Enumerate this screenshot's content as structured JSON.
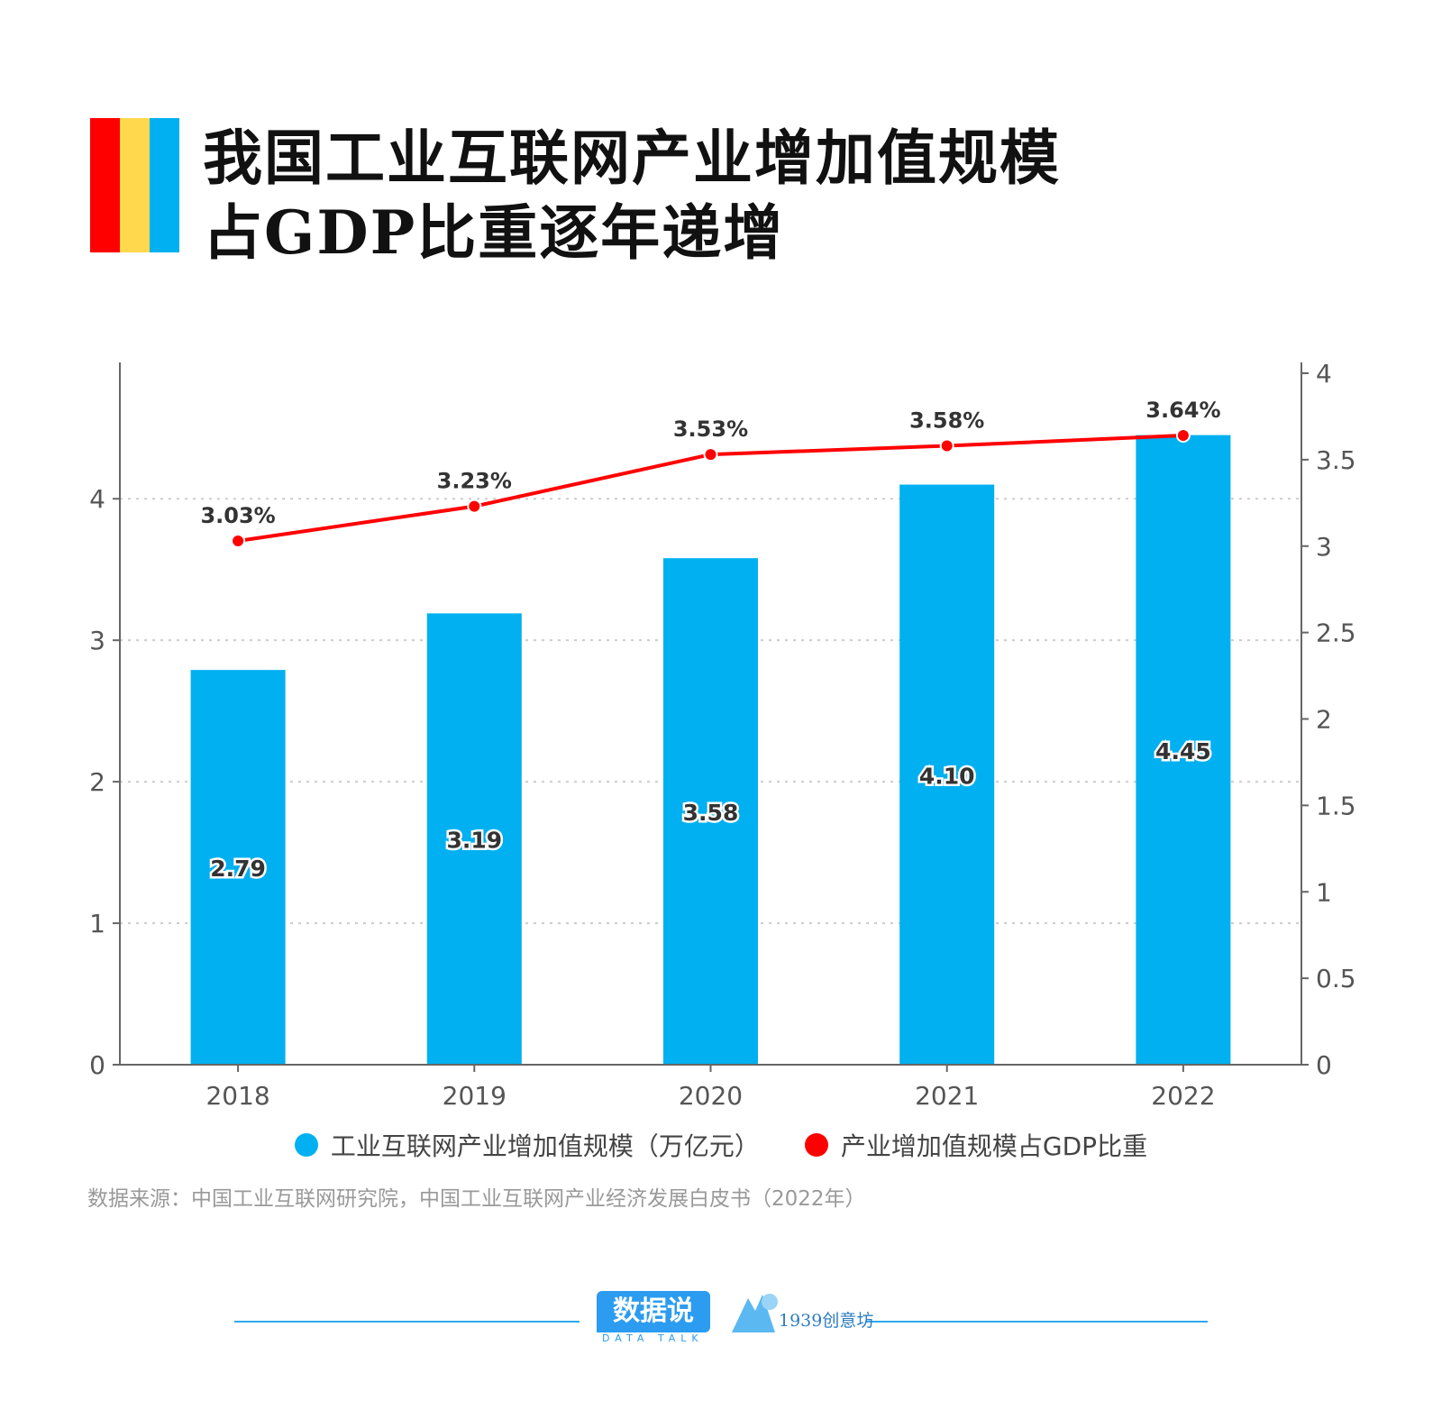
{
  "title": {
    "line1": "我国工业互联网产业增加值规模",
    "line2": "占GDP比重逐年递增"
  },
  "colors": {
    "red": "#FF0000",
    "yellow": "#FFD84D",
    "blue": "#00B0F0",
    "line": "#FF0000",
    "footer": "#2FA9F0"
  },
  "chart_data": {
    "type": "bar+line",
    "categories": [
      "2018",
      "2019",
      "2020",
      "2021",
      "2022"
    ],
    "series": [
      {
        "name": "工业互联网产业增加值规模（万亿元）",
        "type": "bar",
        "axis": "left",
        "color": "#00B0F0",
        "values": [
          2.79,
          3.19,
          3.58,
          4.1,
          4.45
        ],
        "labels": [
          "2.79",
          "3.19",
          "3.58",
          "4.10",
          "4.45"
        ]
      },
      {
        "name": "产业增加值规模占GDP比重",
        "type": "line",
        "axis": "right",
        "color": "#FF0000",
        "values": [
          3.03,
          3.23,
          3.53,
          3.58,
          3.64
        ],
        "labels": [
          "3.03%",
          "3.23%",
          "3.53%",
          "3.58%",
          "3.64%"
        ]
      }
    ],
    "left_axis": {
      "ylim": [
        0,
        4.9
      ],
      "ticks": [
        "0",
        "1",
        "2",
        "3",
        "4"
      ]
    },
    "right_axis": {
      "ylim": [
        0,
        4
      ],
      "ticks": [
        "0",
        "0.5",
        "1",
        "1.5",
        "2",
        "2.5",
        "3",
        "3.5",
        "4"
      ]
    },
    "grid": "horizontal dotted",
    "legend_placement": "bottom"
  },
  "source": "数据来源：中国工业互联网研究院，中国工业互联网产业经济发展白皮书（2022年）",
  "footer": {
    "logo1": "数据说",
    "logo1_sub": "DATA TALK",
    "logo2": "1939创意坊"
  }
}
